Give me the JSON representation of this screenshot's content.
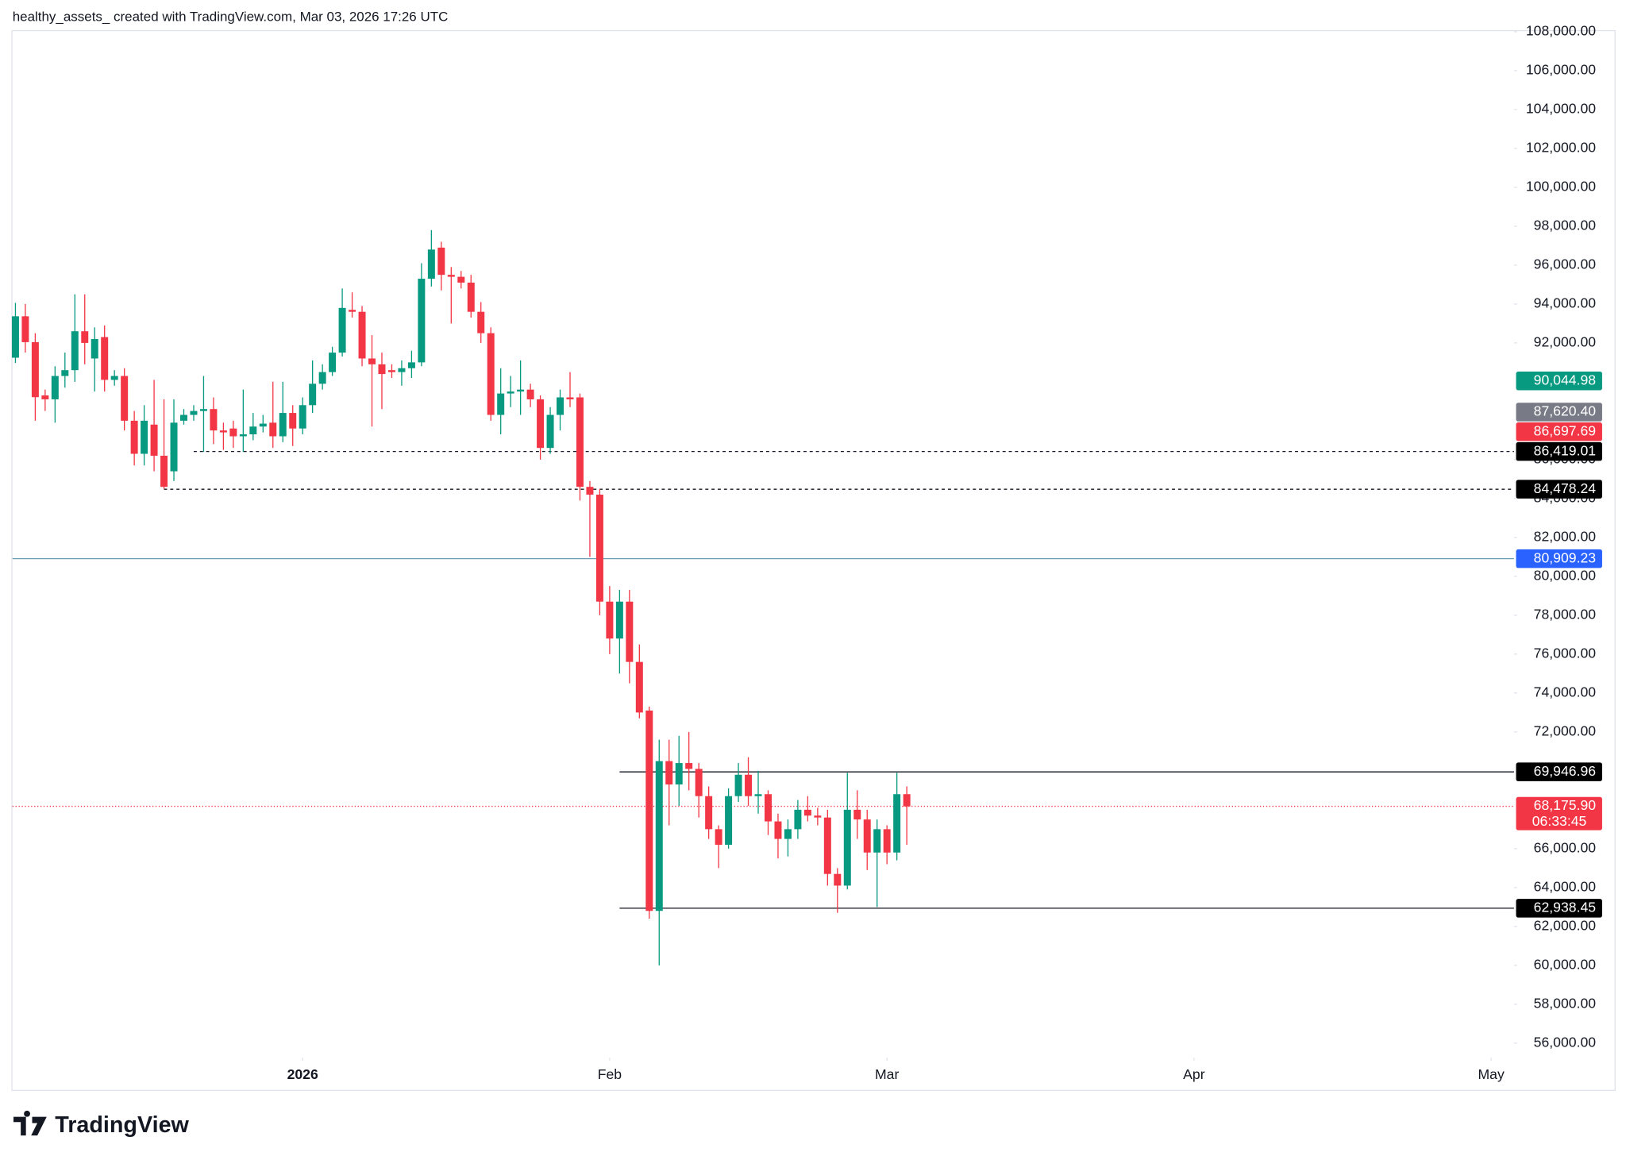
{
  "header": {
    "text": "healthy_assets_ created with TradingView.com, Mar 03, 2026 17:26 UTC"
  },
  "footer": {
    "logo": "TradingView"
  },
  "chart_data": {
    "type": "candlestick",
    "up_color": "#089981",
    "down_color": "#f23645",
    "open": [
      91240,
      93370,
      92040,
      89300,
      89100,
      90300,
      90600,
      92600,
      91200,
      92300,
      90100,
      90300,
      88000,
      86300,
      87800,
      86200,
      85400,
      88000,
      88300,
      88500,
      88600,
      87500,
      87600,
      87200,
      87300,
      87700,
      87900,
      87200,
      88400,
      87600,
      88800,
      89900,
      90500,
      91500,
      93700,
      93600,
      91200,
      90900,
      90600,
      90500,
      90700,
      91000,
      95300,
      96900,
      95500,
      95400,
      95100,
      93600,
      92500,
      88300,
      89400,
      89500,
      89600,
      89100,
      86600,
      88300,
      89200,
      89200,
      84600,
      84200,
      78700,
      76800,
      78700,
      75600,
      73100,
      62800,
      70500,
      69300,
      70400,
      70100,
      68700,
      67000,
      66200,
      68700,
      69800,
      68700,
      68800,
      67400,
      66500,
      67000,
      68000,
      67700,
      67600,
      64700,
      64100,
      68000,
      67500,
      65800,
      67000,
      65800,
      68800
    ],
    "high": [
      94060,
      94000,
      92500,
      89600,
      90800,
      91500,
      94500,
      94500,
      92800,
      92900,
      90600,
      90700,
      88500,
      88800,
      90100,
      89100,
      89100,
      88600,
      88800,
      90300,
      89200,
      87900,
      88000,
      89600,
      88400,
      88300,
      90000,
      90000,
      88800,
      89200,
      91100,
      90900,
      91800,
      94800,
      94600,
      93900,
      92400,
      91500,
      90900,
      91100,
      91600,
      96100,
      97800,
      97200,
      95900,
      95700,
      95500,
      94100,
      92800,
      90700,
      90300,
      91100,
      89900,
      89300,
      88700,
      89600,
      90500,
      89400,
      84900,
      84500,
      79500,
      79300,
      79300,
      76500,
      73300,
      71600,
      71600,
      71800,
      72000,
      70400,
      69200,
      67200,
      69100,
      70400,
      70700,
      70000,
      69000,
      67800,
      67500,
      68500,
      68700,
      68100,
      68000,
      65000,
      69900,
      69000,
      68000,
      67500,
      67200,
      69900,
      69200
    ],
    "low": [
      90970,
      91500,
      88000,
      88500,
      87900,
      89700,
      90000,
      90900,
      89500,
      89500,
      89800,
      87500,
      85700,
      85700,
      85400,
      84500,
      84900,
      87800,
      88000,
      86400,
      86800,
      86500,
      86600,
      86400,
      87000,
      87400,
      86600,
      86900,
      86700,
      87300,
      88400,
      89600,
      90300,
      91300,
      93300,
      90800,
      87700,
      88600,
      90200,
      89800,
      90200,
      90800,
      94900,
      94700,
      93000,
      94800,
      93300,
      92000,
      88000,
      87300,
      88700,
      88300,
      88700,
      86000,
      86300,
      87500,
      88700,
      83900,
      81000,
      78000,
      76000,
      75000,
      74500,
      72700,
      62400,
      60000,
      67200,
      68200,
      69000,
      67600,
      66500,
      65000,
      66000,
      68400,
      68200,
      67800,
      66700,
      65500,
      65600,
      66500,
      67400,
      67200,
      64100,
      62700,
      63900,
      66500,
      64900,
      63000,
      65200,
      65400,
      66200
    ],
    "close": [
      93370,
      92040,
      89210,
      89100,
      90300,
      90600,
      92600,
      92000,
      92200,
      90100,
      90300,
      88000,
      86300,
      88000,
      86200,
      84600,
      87900,
      88300,
      88500,
      88600,
      87500,
      87400,
      87200,
      87300,
      87700,
      87850,
      87200,
      88400,
      87600,
      88800,
      89900,
      90500,
      91500,
      93800,
      93600,
      91200,
      90900,
      90400,
      90500,
      90700,
      91000,
      95300,
      96800,
      95500,
      95400,
      95100,
      93600,
      92500,
      88300,
      89400,
      89500,
      89600,
      89100,
      86600,
      88300,
      89200,
      89100,
      84600,
      84200,
      78700,
      76800,
      78700,
      75600,
      73000,
      62800,
      70500,
      69300,
      70400,
      70100,
      68700,
      67000,
      66200,
      68700,
      69800,
      68700,
      68800,
      67400,
      66500,
      67000,
      68000,
      67700,
      67600,
      64700,
      64100,
      68000,
      67500,
      65800,
      67000,
      65800,
      68800,
      68175.9
    ],
    "xlim": [
      -0.3,
      151.1
    ],
    "xticks": [
      {
        "value": 29,
        "label": "2026",
        "bold": true
      },
      {
        "value": 60,
        "label": "Feb"
      },
      {
        "value": 88,
        "label": "Mar"
      },
      {
        "value": 119,
        "label": "Apr"
      },
      {
        "value": 149,
        "label": "May"
      }
    ],
    "ylim": [
      55250,
      108030
    ],
    "yticks": [
      {
        "value": 56000,
        "label": "56,000.00"
      },
      {
        "value": 58000,
        "label": "58,000.00"
      },
      {
        "value": 60000,
        "label": "60,000.00"
      },
      {
        "value": 62000,
        "label": "62,000.00"
      },
      {
        "value": 64000,
        "label": "64,000.00"
      },
      {
        "value": 66000,
        "label": "66,000.00"
      },
      {
        "value": 72000,
        "label": "72,000.00"
      },
      {
        "value": 74000,
        "label": "74,000.00"
      },
      {
        "value": 76000,
        "label": "76,000.00"
      },
      {
        "value": 78000,
        "label": "78,000.00"
      },
      {
        "value": 80000,
        "label": "80,000.00"
      },
      {
        "value": 82000,
        "label": "82,000.00"
      },
      {
        "value": 84000,
        "label": "84,000.00"
      },
      {
        "value": 86000,
        "label": "86,000.00"
      },
      {
        "value": 92000,
        "label": "92,000.00"
      },
      {
        "value": 94000,
        "label": "94,000.00"
      },
      {
        "value": 96000,
        "label": "96,000.00"
      },
      {
        "value": 98000,
        "label": "98,000.00"
      },
      {
        "value": 100000,
        "label": "100,000.00"
      },
      {
        "value": 102000,
        "label": "102,000.00"
      },
      {
        "value": 104000,
        "label": "104,000.00"
      },
      {
        "value": 106000,
        "label": "106,000.00"
      },
      {
        "value": 108000,
        "label": "108,000.00"
      }
    ],
    "price_lines": [
      {
        "value": 90044.98,
        "value_label": "90,044.98",
        "color": "#089981"
      },
      {
        "value": 87620.4,
        "value_label": "87,620.40",
        "color": "#787b86"
      },
      {
        "value": 86697.69,
        "value_label": "86,697.69",
        "color": "#f23645"
      },
      {
        "value": 86419.01,
        "value_label": "86,419.01",
        "color": "#000000",
        "line": "dashed",
        "line_color": "#131722",
        "from": 18
      },
      {
        "value": 84478.24,
        "value_label": "84,478.24",
        "color": "#000000",
        "line": "dashed",
        "line_color": "#131722",
        "from": 15
      },
      {
        "value": 80909.23,
        "value_label": "80,909.23",
        "color": "#2962ff",
        "line": "solid",
        "line_color": "#6a9fb5"
      },
      {
        "value": 69946.96,
        "value_label": "69,946.96",
        "color": "#000000",
        "line": "solid",
        "line_color": "#131722",
        "from": 61
      },
      {
        "value": 62938.45,
        "value_label": "62,938.45",
        "color": "#000000",
        "line": "solid",
        "line_color": "#131722",
        "from": 61
      },
      {
        "value": 68175.9,
        "value_label": "68,175.90",
        "countdown": "06:33:45",
        "color": "#f23645",
        "line": "dotted",
        "line_color": "#f23645"
      }
    ]
  }
}
